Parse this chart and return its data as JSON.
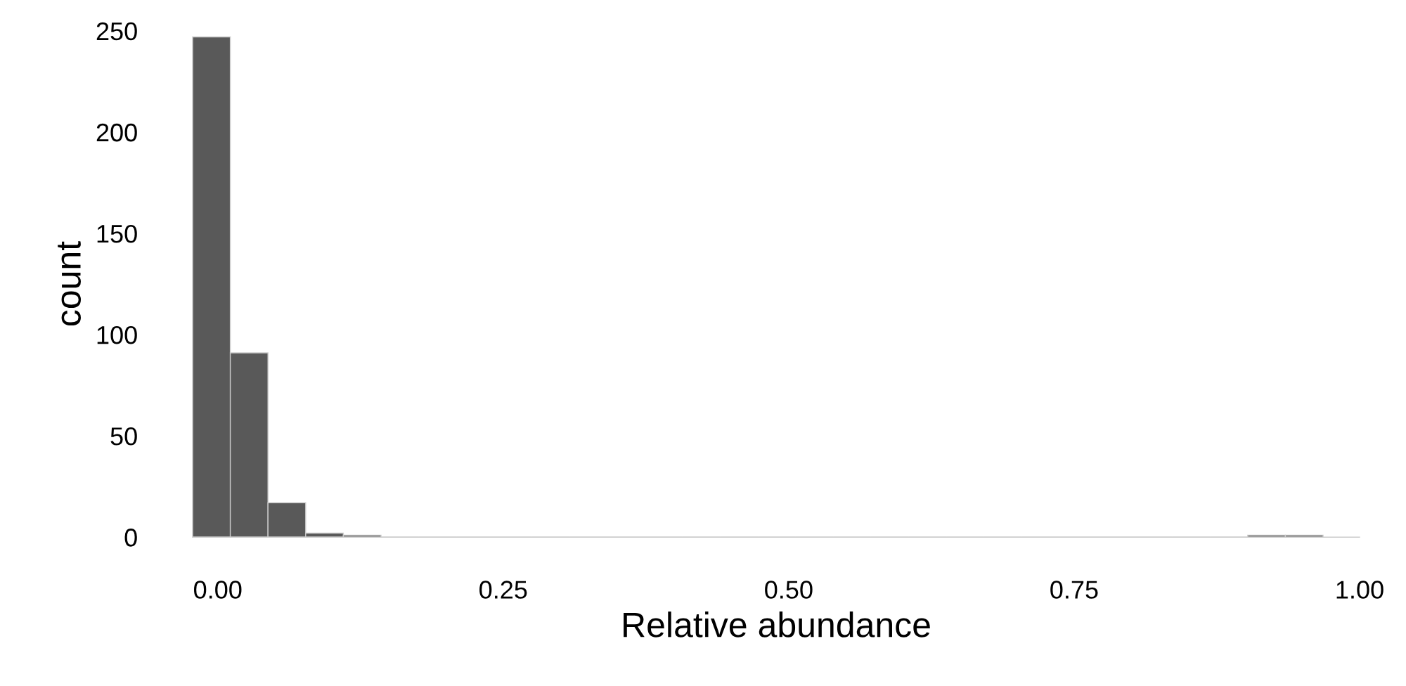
{
  "chart_data": {
    "type": "histogram",
    "xlabel": "Relative abundance",
    "ylabel": "count",
    "bins": [
      -0.022,
      0.011,
      0.044,
      0.077,
      0.11,
      0.143,
      0.176,
      0.209,
      0.242,
      0.275,
      0.308,
      0.341,
      0.374,
      0.407,
      0.44,
      0.473,
      0.506,
      0.539,
      0.572,
      0.605,
      0.638,
      0.671,
      0.704,
      0.737,
      0.77,
      0.803,
      0.836,
      0.869,
      0.902,
      0.935,
      0.968
    ],
    "values": [
      247,
      91,
      17,
      2,
      1,
      0,
      0,
      0,
      0,
      0,
      0,
      0,
      0,
      0,
      0,
      0,
      0,
      0,
      0,
      0,
      0,
      0,
      0,
      0,
      0,
      0,
      0,
      0,
      1,
      1
    ],
    "color": "#595959",
    "xlim": [
      -0.022,
      1.0
    ],
    "xticks": [
      {
        "value": 0,
        "label": "0.00"
      },
      0.25,
      {
        "value": 0.5,
        "label": "0.50"
      },
      0.75,
      {
        "value": 1,
        "label": "1.00"
      }
    ],
    "ylim": [
      0,
      250
    ],
    "yticks": [
      0,
      50,
      100,
      150,
      200,
      250
    ],
    "grid": false
  }
}
